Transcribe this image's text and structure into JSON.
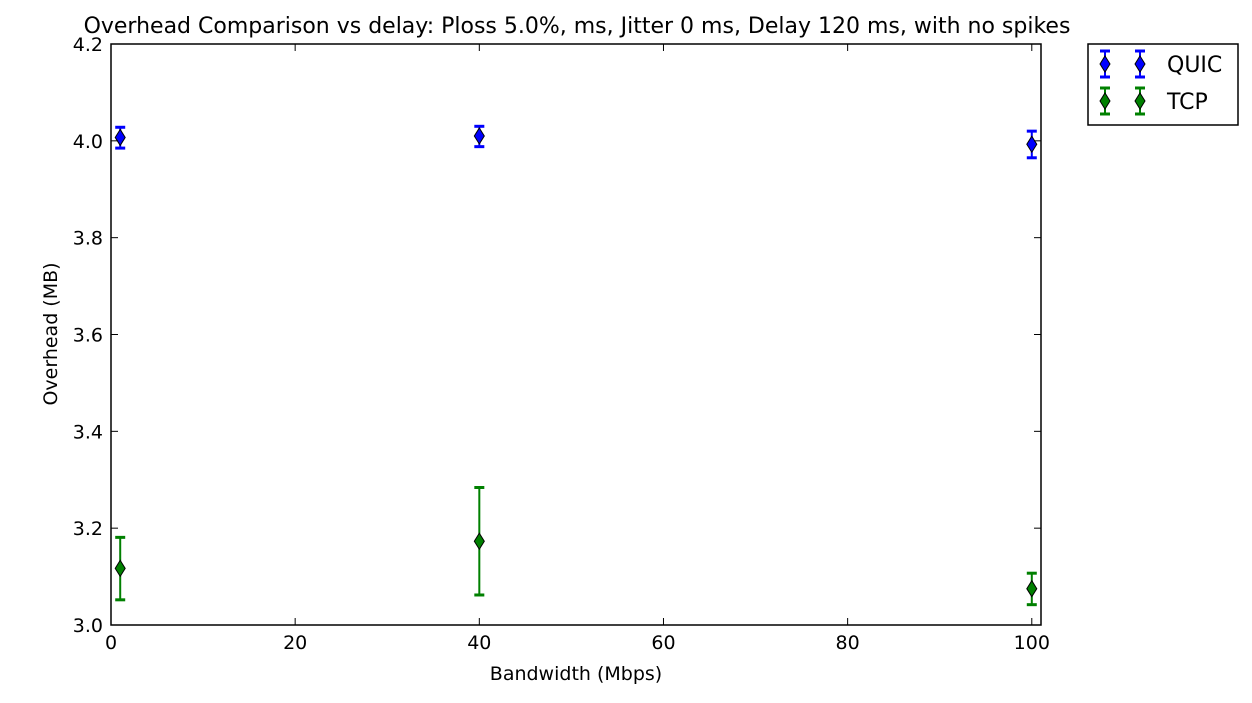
{
  "chart_data": {
    "type": "scatter",
    "title": "Overhead Comparison vs delay: Ploss 5.0%, ms, Jitter 0 ms, Delay 120 ms, with no spikes",
    "xlabel": "Bandwidth (Mbps)",
    "ylabel": "Overhead (MB)",
    "xlim": [
      0,
      101
    ],
    "ylim": [
      3.0,
      4.2
    ],
    "x_ticks": [
      "0",
      "20",
      "40",
      "60",
      "80",
      "100"
    ],
    "y_ticks": [
      "3.0",
      "3.2",
      "3.4",
      "3.6",
      "3.8",
      "4.0",
      "4.2"
    ],
    "grid": false,
    "legend_position": "outside-right-top",
    "error_bars": true,
    "series": [
      {
        "name": "QUIC",
        "color": "#0000ff",
        "marker": "thin-diamond",
        "x": [
          1,
          40,
          100
        ],
        "y": [
          4.007,
          4.01,
          3.993
        ],
        "err_low": [
          3.985,
          3.988,
          3.965
        ],
        "err_high": [
          4.028,
          4.03,
          4.02
        ]
      },
      {
        "name": "TCP",
        "color": "#008000",
        "marker": "thin-diamond",
        "x": [
          1,
          40,
          100
        ],
        "y": [
          3.117,
          3.173,
          3.075
        ],
        "err_low": [
          3.052,
          3.062,
          3.042
        ],
        "err_high": [
          3.181,
          3.284,
          3.107
        ]
      }
    ]
  }
}
